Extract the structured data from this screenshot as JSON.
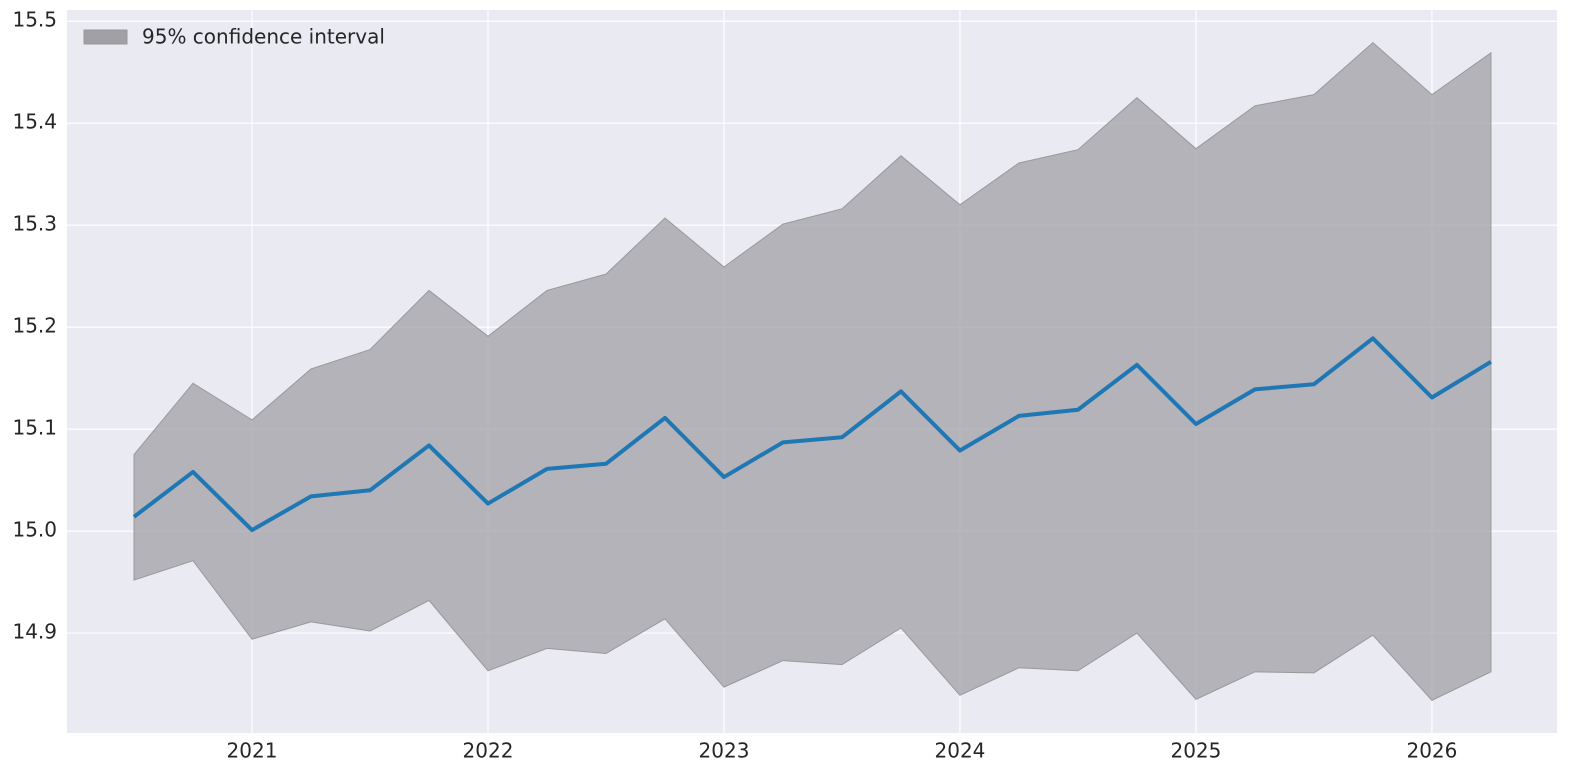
{
  "chart_data": {
    "type": "line",
    "x": [
      2020.5,
      2020.75,
      2021,
      2021.25,
      2021.5,
      2021.75,
      2022,
      2022.25,
      2022.5,
      2022.75,
      2023,
      2023.25,
      2023.5,
      2023.75,
      2024,
      2024.25,
      2024.5,
      2024.75,
      2025,
      2025.25,
      2025.5,
      2025.75,
      2026,
      2026.25
    ],
    "series": [
      {
        "color": "#1f77b4",
        "values": [
          15.014,
          15.058,
          15.001,
          15.034,
          15.04,
          15.084,
          15.027,
          15.061,
          15.066,
          15.111,
          15.053,
          15.087,
          15.092,
          15.137,
          15.079,
          15.113,
          15.119,
          15.163,
          15.105,
          15.139,
          15.144,
          15.189,
          15.131,
          15.166
        ]
      }
    ],
    "band": {
      "name": "95% confidence interval",
      "color": "#a0a0a5",
      "lower": [
        14.952,
        14.971,
        14.894,
        14.911,
        14.902,
        14.932,
        14.863,
        14.885,
        14.88,
        14.914,
        14.847,
        14.873,
        14.869,
        14.905,
        14.839,
        14.866,
        14.863,
        14.9,
        14.835,
        14.862,
        14.861,
        14.898,
        14.834,
        14.862
      ],
      "upper": [
        15.075,
        15.145,
        15.109,
        15.159,
        15.178,
        15.236,
        15.191,
        15.236,
        15.252,
        15.307,
        15.259,
        15.301,
        15.316,
        15.368,
        15.32,
        15.361,
        15.374,
        15.425,
        15.375,
        15.417,
        15.428,
        15.479,
        15.428,
        15.469
      ]
    },
    "xlim": [
      2020.216,
      2026.53
    ],
    "xticks": [
      2021,
      2022,
      2023,
      2024,
      2025,
      2026
    ],
    "ylim": [
      14.802,
      15.511
    ],
    "yticks": [
      14.9,
      {
        "value": 15.0,
        "label": "15.0"
      },
      15.1,
      15.2,
      15.3,
      15.4,
      15.5
    ],
    "grid": true,
    "legend": "upper left"
  }
}
